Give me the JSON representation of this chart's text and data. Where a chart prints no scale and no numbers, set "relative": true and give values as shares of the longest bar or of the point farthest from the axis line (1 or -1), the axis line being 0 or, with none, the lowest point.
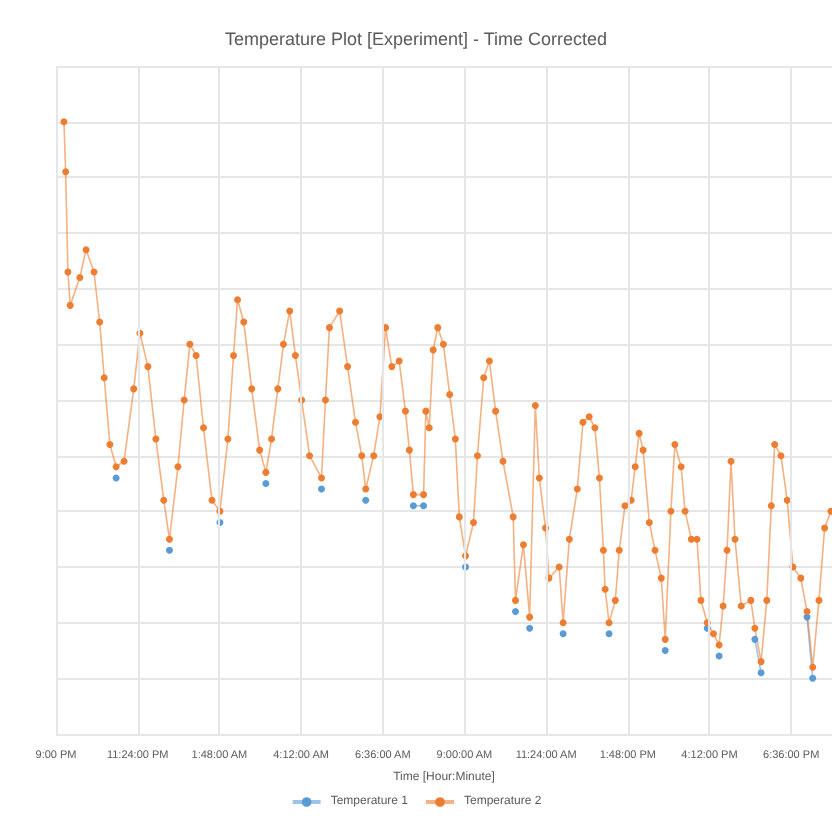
{
  "chart_data": {
    "type": "line",
    "title": "Temperature Plot [Experiment] - Time Corrected",
    "xlabel": "Time [Hour:Minute]",
    "relative": true,
    "grid": true,
    "legend": "bottom",
    "marker": "circle",
    "line_style": "solid",
    "xlim": [
      "2000-01-01T21:00",
      "2000-01-02T19:48"
    ],
    "xticks": [
      {
        "value": "2000-01-01T21:00",
        "label": "9:00 PM"
      },
      {
        "value": "2000-01-01T23:24",
        "label": "11:24:00 PM"
      },
      {
        "value": "2000-01-02T01:48",
        "label": "1:48:00 AM"
      },
      {
        "value": "2000-01-02T04:12",
        "label": "4:12:00 AM"
      },
      {
        "value": "2000-01-02T06:36",
        "label": "6:36:00 AM"
      },
      {
        "value": "2000-01-02T09:00",
        "label": "9:00:00 AM"
      },
      {
        "value": "2000-01-02T11:24",
        "label": "11:24:00 AM"
      },
      {
        "value": "2000-01-02T13:48",
        "label": "1:48:00 PM"
      },
      {
        "value": "2000-01-02T16:12",
        "label": "4:12:00 PM"
      },
      {
        "value": "2000-01-02T18:36",
        "label": "6:36:00 PM"
      }
    ],
    "x": [
      "2000-01-01T21:14",
      "2000-01-01T21:17",
      "2000-01-01T21:21",
      "2000-01-01T21:25",
      "2000-01-01T21:42",
      "2000-01-01T21:53",
      "2000-01-01T22:07",
      "2000-01-01T22:17",
      "2000-01-01T22:25",
      "2000-01-01T22:35",
      "2000-01-01T22:46",
      "2000-01-01T23:00",
      "2000-01-01T23:17",
      "2000-01-01T23:28",
      "2000-01-01T23:42",
      "2000-01-01T23:56",
      "2000-01-02T00:10",
      "2000-01-02T00:20",
      "2000-01-02T00:35",
      "2000-01-02T00:46",
      "2000-01-02T00:56",
      "2000-01-02T01:07",
      "2000-01-02T01:20",
      "2000-01-02T01:35",
      "2000-01-02T01:49",
      "2000-01-02T02:03",
      "2000-01-02T02:13",
      "2000-01-02T02:20",
      "2000-01-02T02:31",
      "2000-01-02T02:45",
      "2000-01-02T02:59",
      "2000-01-02T03:10",
      "2000-01-02T03:20",
      "2000-01-02T03:31",
      "2000-01-02T03:41",
      "2000-01-02T03:52",
      "2000-01-02T04:02",
      "2000-01-02T04:13",
      "2000-01-02T04:27",
      "2000-01-02T04:48",
      "2000-01-02T04:55",
      "2000-01-02T05:02",
      "2000-01-02T05:20",
      "2000-01-02T05:34",
      "2000-01-02T05:48",
      "2000-01-02T05:59",
      "2000-01-02T06:06",
      "2000-01-02T06:20",
      "2000-01-02T06:31",
      "2000-01-02T06:41",
      "2000-01-02T06:52",
      "2000-01-02T07:05",
      "2000-01-02T07:16",
      "2000-01-02T07:23",
      "2000-01-02T07:30",
      "2000-01-02T07:48",
      "2000-01-02T07:52",
      "2000-01-02T07:58",
      "2000-01-02T08:05",
      "2000-01-02T08:13",
      "2000-01-02T08:23",
      "2000-01-02T08:34",
      "2000-01-02T08:44",
      "2000-01-02T08:51",
      "2000-01-02T09:02",
      "2000-01-02T09:16",
      "2000-01-02T09:23",
      "2000-01-02T09:34",
      "2000-01-02T09:44",
      "2000-01-02T09:55",
      "2000-01-02T10:08",
      "2000-01-02T10:26",
      "2000-01-02T10:30",
      "2000-01-02T10:44",
      "2000-01-02T10:55",
      "2000-01-02T11:05",
      "2000-01-02T11:12",
      "2000-01-02T11:23",
      "2000-01-02T11:29",
      "2000-01-02T11:47",
      "2000-01-02T11:54",
      "2000-01-02T12:05",
      "2000-01-02T12:19",
      "2000-01-02T12:29",
      "2000-01-02T12:40",
      "2000-01-02T12:50",
      "2000-01-02T12:58",
      "2000-01-02T13:05",
      "2000-01-02T13:08",
      "2000-01-02T13:15",
      "2000-01-02T13:26",
      "2000-01-02T13:33",
      "2000-01-02T13:43",
      "2000-01-02T13:54",
      "2000-01-02T14:01",
      "2000-01-02T14:08",
      "2000-01-02T14:15",
      "2000-01-02T14:26",
      "2000-01-02T14:36",
      "2000-01-02T14:47",
      "2000-01-02T14:54",
      "2000-01-02T15:04",
      "2000-01-02T15:11",
      "2000-01-02T15:22",
      "2000-01-02T15:29",
      "2000-01-02T15:40",
      "2000-01-02T15:50",
      "2000-01-02T15:57",
      "2000-01-02T16:08",
      "2000-01-02T16:19",
      "2000-01-02T16:29",
      "2000-01-02T16:36",
      "2000-01-02T16:43",
      "2000-01-02T16:50",
      "2000-01-02T16:57",
      "2000-01-02T17:08",
      "2000-01-02T17:25",
      "2000-01-02T17:32",
      "2000-01-02T17:43",
      "2000-01-02T17:53",
      "2000-01-02T18:01",
      "2000-01-02T18:07",
      "2000-01-02T18:18",
      "2000-01-02T18:29",
      "2000-01-02T18:39",
      "2000-01-02T18:53",
      "2000-01-02T19:04",
      "2000-01-02T19:14",
      "2000-01-02T19:25",
      "2000-01-02T19:35",
      "2000-01-02T19:46"
    ],
    "series": [
      {
        "name": "Temperature 1",
        "color": "#5b9bd5",
        "values": [
          null,
          null,
          null,
          null,
          null,
          null,
          null,
          null,
          null,
          null,
          0.36,
          null,
          null,
          null,
          null,
          null,
          null,
          0.23,
          null,
          null,
          null,
          null,
          null,
          null,
          0.28,
          null,
          null,
          null,
          null,
          null,
          null,
          0.35,
          null,
          null,
          null,
          null,
          null,
          null,
          null,
          0.34,
          null,
          null,
          null,
          null,
          null,
          null,
          0.32,
          null,
          null,
          null,
          null,
          null,
          null,
          null,
          0.31,
          0.31,
          null,
          null,
          null,
          null,
          null,
          null,
          null,
          null,
          0.2,
          null,
          null,
          null,
          null,
          null,
          null,
          null,
          0.12,
          null,
          0.09,
          null,
          null,
          null,
          null,
          null,
          0.08,
          null,
          null,
          null,
          null,
          null,
          null,
          null,
          null,
          0.08,
          null,
          null,
          null,
          null,
          null,
          null,
          null,
          null,
          null,
          null,
          0.05,
          null,
          null,
          null,
          null,
          null,
          null,
          null,
          0.09,
          null,
          0.04,
          null,
          null,
          null,
          null,
          null,
          null,
          0.07,
          0.01,
          null,
          null,
          null,
          null,
          null,
          null,
          null,
          0.11,
          0.0,
          null,
          null,
          null
        ]
      },
      {
        "name": "Temperature 2",
        "color": "#ed7d31",
        "values": [
          1.0,
          0.91,
          0.73,
          0.67,
          0.72,
          0.77,
          0.73,
          0.64,
          0.54,
          0.42,
          0.38,
          0.39,
          0.52,
          0.62,
          0.56,
          0.43,
          0.32,
          0.25,
          0.38,
          0.5,
          0.6,
          0.58,
          0.45,
          0.32,
          0.3,
          0.43,
          0.58,
          0.68,
          0.64,
          0.52,
          0.41,
          0.37,
          0.43,
          0.52,
          0.6,
          0.66,
          0.58,
          0.5,
          0.4,
          0.36,
          0.5,
          0.63,
          0.66,
          0.56,
          0.46,
          0.4,
          0.34,
          0.4,
          0.47,
          0.63,
          0.56,
          0.57,
          0.48,
          0.41,
          0.33,
          0.33,
          0.48,
          0.45,
          0.59,
          0.63,
          0.6,
          0.51,
          0.43,
          0.29,
          0.22,
          0.28,
          0.4,
          0.54,
          0.57,
          0.48,
          0.39,
          0.29,
          0.14,
          0.24,
          0.11,
          0.49,
          0.36,
          0.27,
          0.18,
          0.2,
          0.1,
          0.25,
          0.34,
          0.46,
          0.47,
          0.45,
          0.36,
          0.23,
          0.16,
          0.1,
          0.14,
          0.23,
          0.31,
          0.32,
          0.38,
          0.44,
          0.41,
          0.28,
          0.23,
          0.18,
          0.07,
          0.3,
          0.42,
          0.38,
          0.3,
          0.25,
          0.25,
          0.14,
          0.1,
          0.08,
          0.06,
          0.13,
          0.23,
          0.39,
          0.25,
          0.13,
          0.14,
          0.09,
          0.03,
          0.14,
          0.31,
          0.42,
          0.4,
          0.32,
          0.2,
          0.18,
          0.12,
          0.02,
          0.14,
          0.27,
          0.3
        ]
      }
    ]
  }
}
